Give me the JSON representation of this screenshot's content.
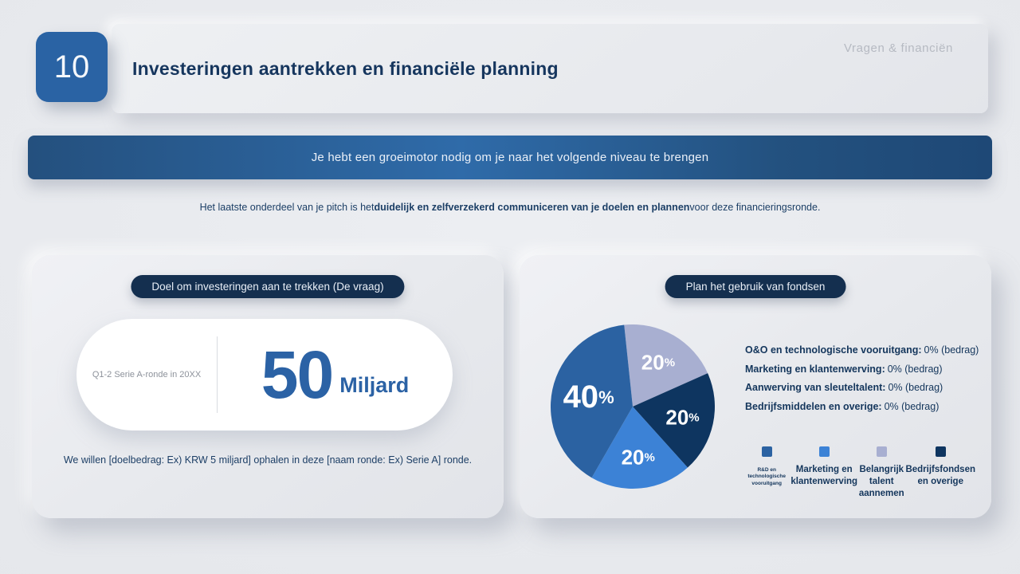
{
  "page": {
    "slide_number": "10",
    "title": "Investeringen aantrekken en financiële planning",
    "category": "Vragen & financiën"
  },
  "banner": {
    "text": "Je hebt een groeimotor nodig om je naar het volgende niveau te brengen"
  },
  "intro": {
    "pre": "Het laatste onderdeel van je pitch is het",
    "bold": "duidelijk en zelfverzekerd communiceren van je doelen en plannen",
    "post": "voor deze financieringsronde."
  },
  "goal_card": {
    "badge": "Doel om investeringen aan te trekken (De vraag)",
    "round_label": "Q1-2 Serie A-ronde in 20XX",
    "amount": "50",
    "unit": "Miljard",
    "footnote": "We willen [doelbedrag: Ex) KRW 5 miljard] ophalen in deze [naam ronde: Ex) Serie A] ronde."
  },
  "funds_card": {
    "badge": "Plan het gebruik van fondsen",
    "allocations": [
      {
        "label": "O&O en technologische vooruitgang:",
        "value": "0% (bedrag)"
      },
      {
        "label": "Marketing en klantenwerving:",
        "value": "0% (bedrag)"
      },
      {
        "label": "Aanwerving van sleuteltalent:",
        "value": "0% (bedrag)"
      },
      {
        "label": "Bedrijfsmiddelen en overige:",
        "value": "0% (bedrag)"
      }
    ],
    "legend": [
      {
        "label": "R&D en\ntechnologische vooruitgang",
        "color": "#2b62a2"
      },
      {
        "label": "Marketing en\nklantenwerving",
        "color": "#3c82d6"
      },
      {
        "label": "Belangrijk talent\naannemen",
        "color": "#a8afd1"
      },
      {
        "label": "Bedrijfsfondsen\nen overige",
        "color": "#0e3560"
      }
    ]
  },
  "chart_data": {
    "type": "pie",
    "title": "Plan het gebruik van fondsen",
    "start_angle_deg": -6,
    "clockwise": true,
    "slices": [
      {
        "label": "Belangrijk talent aannemen",
        "value": 20,
        "color": "#a8afd1",
        "text": "20"
      },
      {
        "label": "Bedrijfsfondsen en overige",
        "value": 20,
        "color": "#0e3560",
        "text": "20"
      },
      {
        "label": "Marketing en klantenwerving",
        "value": 20,
        "color": "#3c82d6",
        "text": "20"
      },
      {
        "label": "R&D en technologische vooruitgang",
        "value": 40,
        "color": "#2b62a2",
        "text": "40"
      }
    ],
    "legend_position": "right-and-bottom"
  },
  "colors": {
    "accent_blue": "#2b62a5",
    "badge_navy": "#142f4f",
    "title_navy": "#16365e",
    "muted_gray": "#b6bac2"
  }
}
